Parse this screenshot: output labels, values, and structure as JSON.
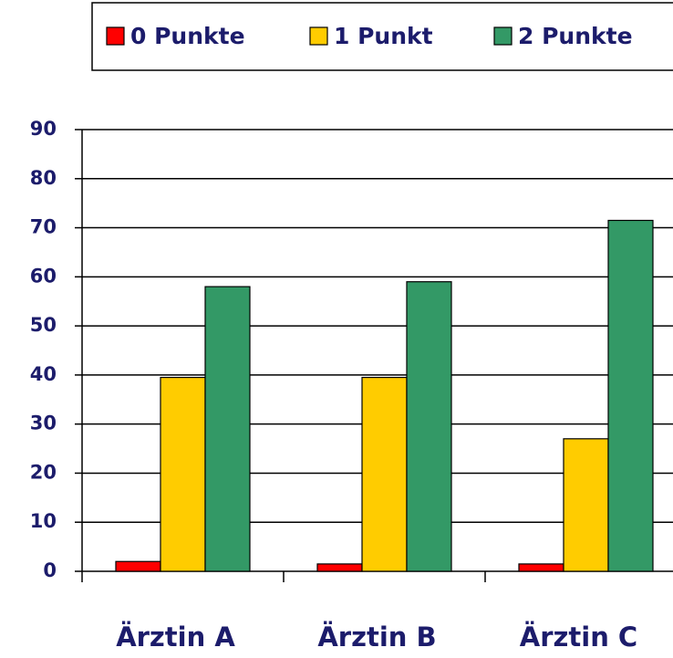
{
  "chart_data": {
    "type": "bar",
    "categories": [
      "Ärztin A",
      "Ärztin B",
      "Ärztin C"
    ],
    "series": [
      {
        "name": "0 Punkte",
        "color": "#ff0000",
        "values": [
          2,
          1.5,
          1.5
        ]
      },
      {
        "name": "1 Punkt",
        "color": "#ffcc00",
        "values": [
          39.5,
          39.5,
          27
        ]
      },
      {
        "name": "2 Punkte",
        "color": "#339966",
        "values": [
          58,
          59,
          71.5
        ]
      }
    ],
    "ylim": [
      0,
      90
    ],
    "yticks": [
      0,
      10,
      20,
      30,
      40,
      50,
      60,
      70,
      80,
      90
    ],
    "grid": true,
    "legend": "top"
  }
}
